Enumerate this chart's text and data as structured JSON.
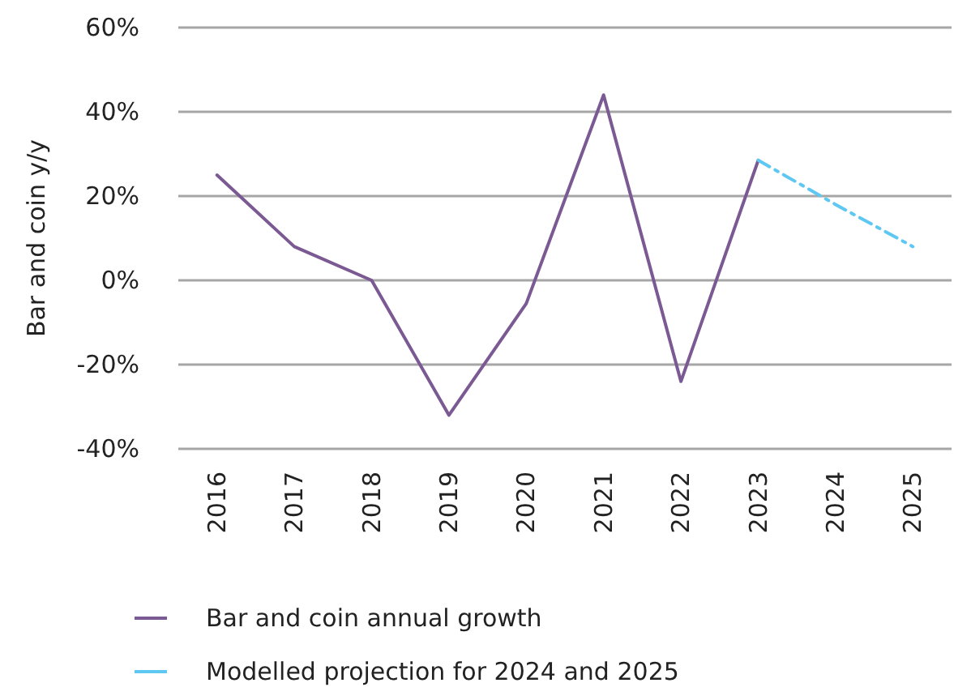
{
  "chart_data": {
    "type": "line",
    "ylabel": "Bar and coin y/y",
    "categories": [
      "2016",
      "2017",
      "2018",
      "2019",
      "2020",
      "2021",
      "2022",
      "2023",
      "2024",
      "2025"
    ],
    "series": [
      {
        "name": "Bar and coin annual growth",
        "color": "#7b5a94",
        "line_style": "solid",
        "values": [
          25,
          8,
          0,
          -32,
          -5.5,
          44,
          -24,
          28.5,
          null,
          null
        ]
      },
      {
        "name": "Modelled projection for 2024 and 2025",
        "color": "#5ec8f2",
        "line_style": "dashed",
        "values": [
          null,
          null,
          null,
          null,
          null,
          null,
          null,
          28.5,
          18,
          8
        ]
      }
    ],
    "ylim": [
      -40,
      60
    ],
    "yticks": [
      {
        "value": -40,
        "label": "-40%"
      },
      {
        "value": -20,
        "label": "-20%"
      },
      {
        "value": 0,
        "label": "0%"
      },
      {
        "value": 20,
        "label": "20%"
      },
      {
        "value": 40,
        "label": "40%"
      },
      {
        "value": 60,
        "label": "60%"
      }
    ],
    "grid": "y",
    "legend": "bottom",
    "marker": "none"
  }
}
